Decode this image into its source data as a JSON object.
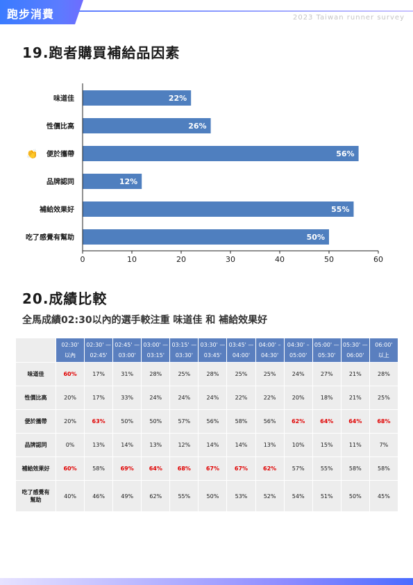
{
  "header": {
    "section": "跑步消費",
    "survey": "2023 Taiwan runner survey"
  },
  "q19": {
    "title": "19.跑者購買補給品因素"
  },
  "q20": {
    "title": "20.成績比較",
    "subtitle": "全馬成績02:30以內的選手較注重 味道佳 和 補給效果好"
  },
  "colors": {
    "bar": "#4f7fbf",
    "header": "#5a7fbf",
    "highlight": "#e00000",
    "cell": "#ededed"
  },
  "chart_data": {
    "type": "bar",
    "orientation": "horizontal",
    "categories": [
      "味道佳",
      "性價比高",
      "便於攜帶",
      "品牌認同",
      "補給效果好",
      "吃了感覺有幫助"
    ],
    "values": [
      22,
      26,
      56,
      12,
      55,
      50
    ],
    "value_labels": [
      "22%",
      "26%",
      "56%",
      "12%",
      "55%",
      "50%"
    ],
    "xlim": [
      0,
      60
    ],
    "xticks": [
      0,
      10,
      20,
      30,
      40,
      50,
      60
    ],
    "highlight_icon": "clap-hands-icon",
    "highlight_index": 2
  },
  "table": {
    "columns": [
      [
        "02:30'",
        "以內"
      ],
      [
        "02:30' —",
        "02:45'"
      ],
      [
        "02:45' —",
        "03:00'"
      ],
      [
        "03:00' —",
        "03:15'"
      ],
      [
        "03:15' —",
        "03:30'"
      ],
      [
        "03:30' —",
        "03:45'"
      ],
      [
        "03:45' —",
        "04:00'"
      ],
      [
        "04:00' –",
        "04:30'"
      ],
      [
        "04:30' –",
        "05:00'"
      ],
      [
        "05:00' —",
        "05:30'"
      ],
      [
        "05:30' —",
        "06:00'"
      ],
      [
        "06:00'",
        "以上"
      ]
    ],
    "rows": [
      {
        "label": [
          "味道佳"
        ],
        "cells": [
          "60%",
          "17%",
          "31%",
          "28%",
          "25%",
          "28%",
          "25%",
          "25%",
          "24%",
          "27%",
          "21%",
          "28%"
        ],
        "red": [
          0
        ]
      },
      {
        "label": [
          "性價比高"
        ],
        "cells": [
          "20%",
          "17%",
          "33%",
          "24%",
          "24%",
          "24%",
          "22%",
          "22%",
          "20%",
          "18%",
          "21%",
          "25%"
        ],
        "red": []
      },
      {
        "label": [
          "便於攜帶"
        ],
        "cells": [
          "20%",
          "63%",
          "50%",
          "50%",
          "57%",
          "56%",
          "58%",
          "56%",
          "62%",
          "64%",
          "64%",
          "68%"
        ],
        "red": [
          1,
          8,
          9,
          10,
          11
        ]
      },
      {
        "label": [
          "品牌認同"
        ],
        "cells": [
          "0%",
          "13%",
          "14%",
          "13%",
          "12%",
          "14%",
          "14%",
          "13%",
          "10%",
          "15%",
          "11%",
          "7%"
        ],
        "red": []
      },
      {
        "label": [
          "補給效果好"
        ],
        "cells": [
          "60%",
          "58%",
          "69%",
          "64%",
          "68%",
          "67%",
          "67%",
          "62%",
          "57%",
          "55%",
          "58%",
          "58%"
        ],
        "red": [
          0,
          2,
          3,
          4,
          5,
          6,
          7
        ]
      },
      {
        "label": [
          "吃了感覺有",
          "幫助"
        ],
        "cells": [
          "40%",
          "46%",
          "49%",
          "62%",
          "55%",
          "50%",
          "53%",
          "52%",
          "54%",
          "51%",
          "50%",
          "45%"
        ],
        "red": []
      }
    ]
  }
}
